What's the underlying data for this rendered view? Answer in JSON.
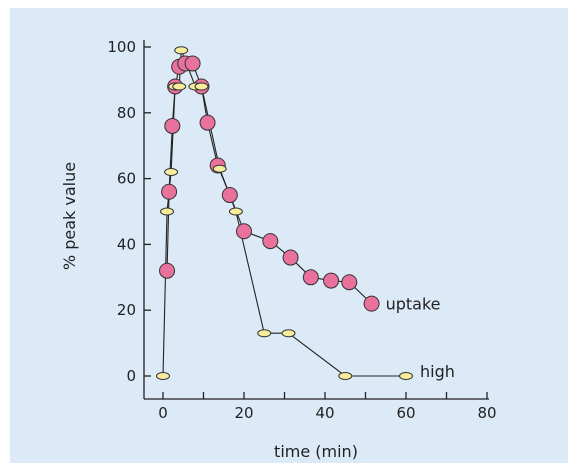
{
  "chart_data": {
    "type": "scatter",
    "title": "",
    "xlabel": "time (min)",
    "ylabel": "% peak value",
    "xlim": [
      -3,
      80
    ],
    "ylim": [
      -1,
      105
    ],
    "xticks": [
      0,
      20,
      40,
      60,
      80
    ],
    "yticks": [
      0,
      20,
      40,
      60,
      80,
      100
    ],
    "xtick_labels": [
      "0",
      "20",
      "40",
      "60",
      "80"
    ],
    "ytick_labels": [
      "0",
      "20",
      "40",
      "60",
      "80",
      "100"
    ],
    "grid": false,
    "legend": "inline labels at series ends",
    "series": [
      {
        "name": "uptake",
        "marker": "circle",
        "color": "#e8729c",
        "points": [
          [
            1,
            32
          ],
          [
            1.5,
            56
          ],
          [
            2.3,
            76
          ],
          [
            3,
            88
          ],
          [
            4,
            94
          ],
          [
            5.5,
            95
          ],
          [
            7.3,
            95
          ],
          [
            9.5,
            88
          ],
          [
            11,
            77
          ],
          [
            13.5,
            64
          ],
          [
            16.5,
            55
          ],
          [
            20,
            44
          ],
          [
            26.5,
            41
          ],
          [
            31.5,
            36
          ],
          [
            36.5,
            30
          ],
          [
            41.5,
            29
          ],
          [
            46,
            28.5
          ],
          [
            51.5,
            22
          ]
        ]
      },
      {
        "name": "high",
        "marker": "ellipse",
        "color": "#f7ec9c",
        "points": [
          [
            0,
            0
          ],
          [
            1,
            50
          ],
          [
            2,
            62
          ],
          [
            3,
            88
          ],
          [
            4,
            88
          ],
          [
            4.5,
            99
          ],
          [
            8,
            88
          ],
          [
            9.5,
            88
          ],
          [
            14,
            63
          ],
          [
            18,
            50
          ],
          [
            25,
            13
          ],
          [
            31,
            13
          ],
          [
            45,
            0
          ],
          [
            60,
            0
          ]
        ]
      }
    ]
  }
}
